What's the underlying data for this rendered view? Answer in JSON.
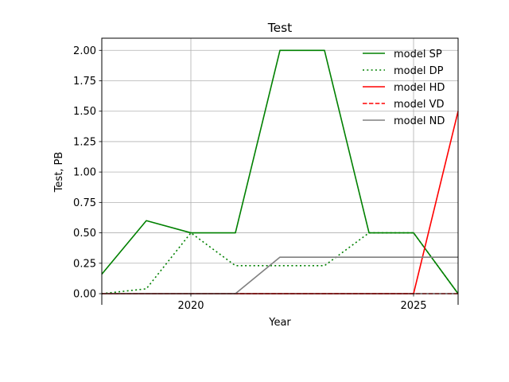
{
  "chart_data": {
    "type": "line",
    "title": "Test",
    "xlabel": "Year",
    "ylabel": "Test, PB",
    "x": [
      2018,
      2019,
      2020,
      2021,
      2022,
      2023,
      2024,
      2025,
      2026
    ],
    "xlim": [
      2018,
      2026
    ],
    "ylim": [
      0,
      2.1
    ],
    "xticks": [
      2020,
      2025
    ],
    "xtick_labels": [
      "2020",
      "2025"
    ],
    "yticks": [
      0,
      0.25,
      0.5,
      0.75,
      1.0,
      1.25,
      1.5,
      1.75,
      2.0
    ],
    "ytick_labels": [
      "0.00",
      "0.25",
      "0.50",
      "0.75",
      "1.00",
      "1.25",
      "1.50",
      "1.75",
      "2.00"
    ],
    "grid": true,
    "legend_position": "top-right",
    "series": [
      {
        "name": "model SP",
        "color": "#008000",
        "dash": "solid",
        "values": [
          0.16,
          0.6,
          0.5,
          0.5,
          2.0,
          2.0,
          0.5,
          0.5,
          0.0
        ]
      },
      {
        "name": "model DP",
        "color": "#008000",
        "dash": "dotted",
        "values": [
          0.0,
          0.04,
          0.5,
          0.23,
          0.23,
          0.23,
          0.5,
          0.5,
          0.0
        ]
      },
      {
        "name": "model HD",
        "color": "#ff0000",
        "dash": "solid",
        "values": [
          0.0,
          0.0,
          0.0,
          0.0,
          0.0,
          0.0,
          0.0,
          0.0,
          1.5
        ]
      },
      {
        "name": "model VD",
        "color": "#ff0000",
        "dash": "dashed",
        "values": [
          0.0,
          0.0,
          0.0,
          0.0,
          0.0,
          0.0,
          0.0,
          0.0,
          0.0
        ]
      },
      {
        "name": "model ND",
        "color": "#808080",
        "dash": "solid",
        "values": [
          0.0,
          0.0,
          0.0,
          0.0,
          0.3,
          0.3,
          0.3,
          0.3,
          0.3
        ]
      }
    ]
  }
}
